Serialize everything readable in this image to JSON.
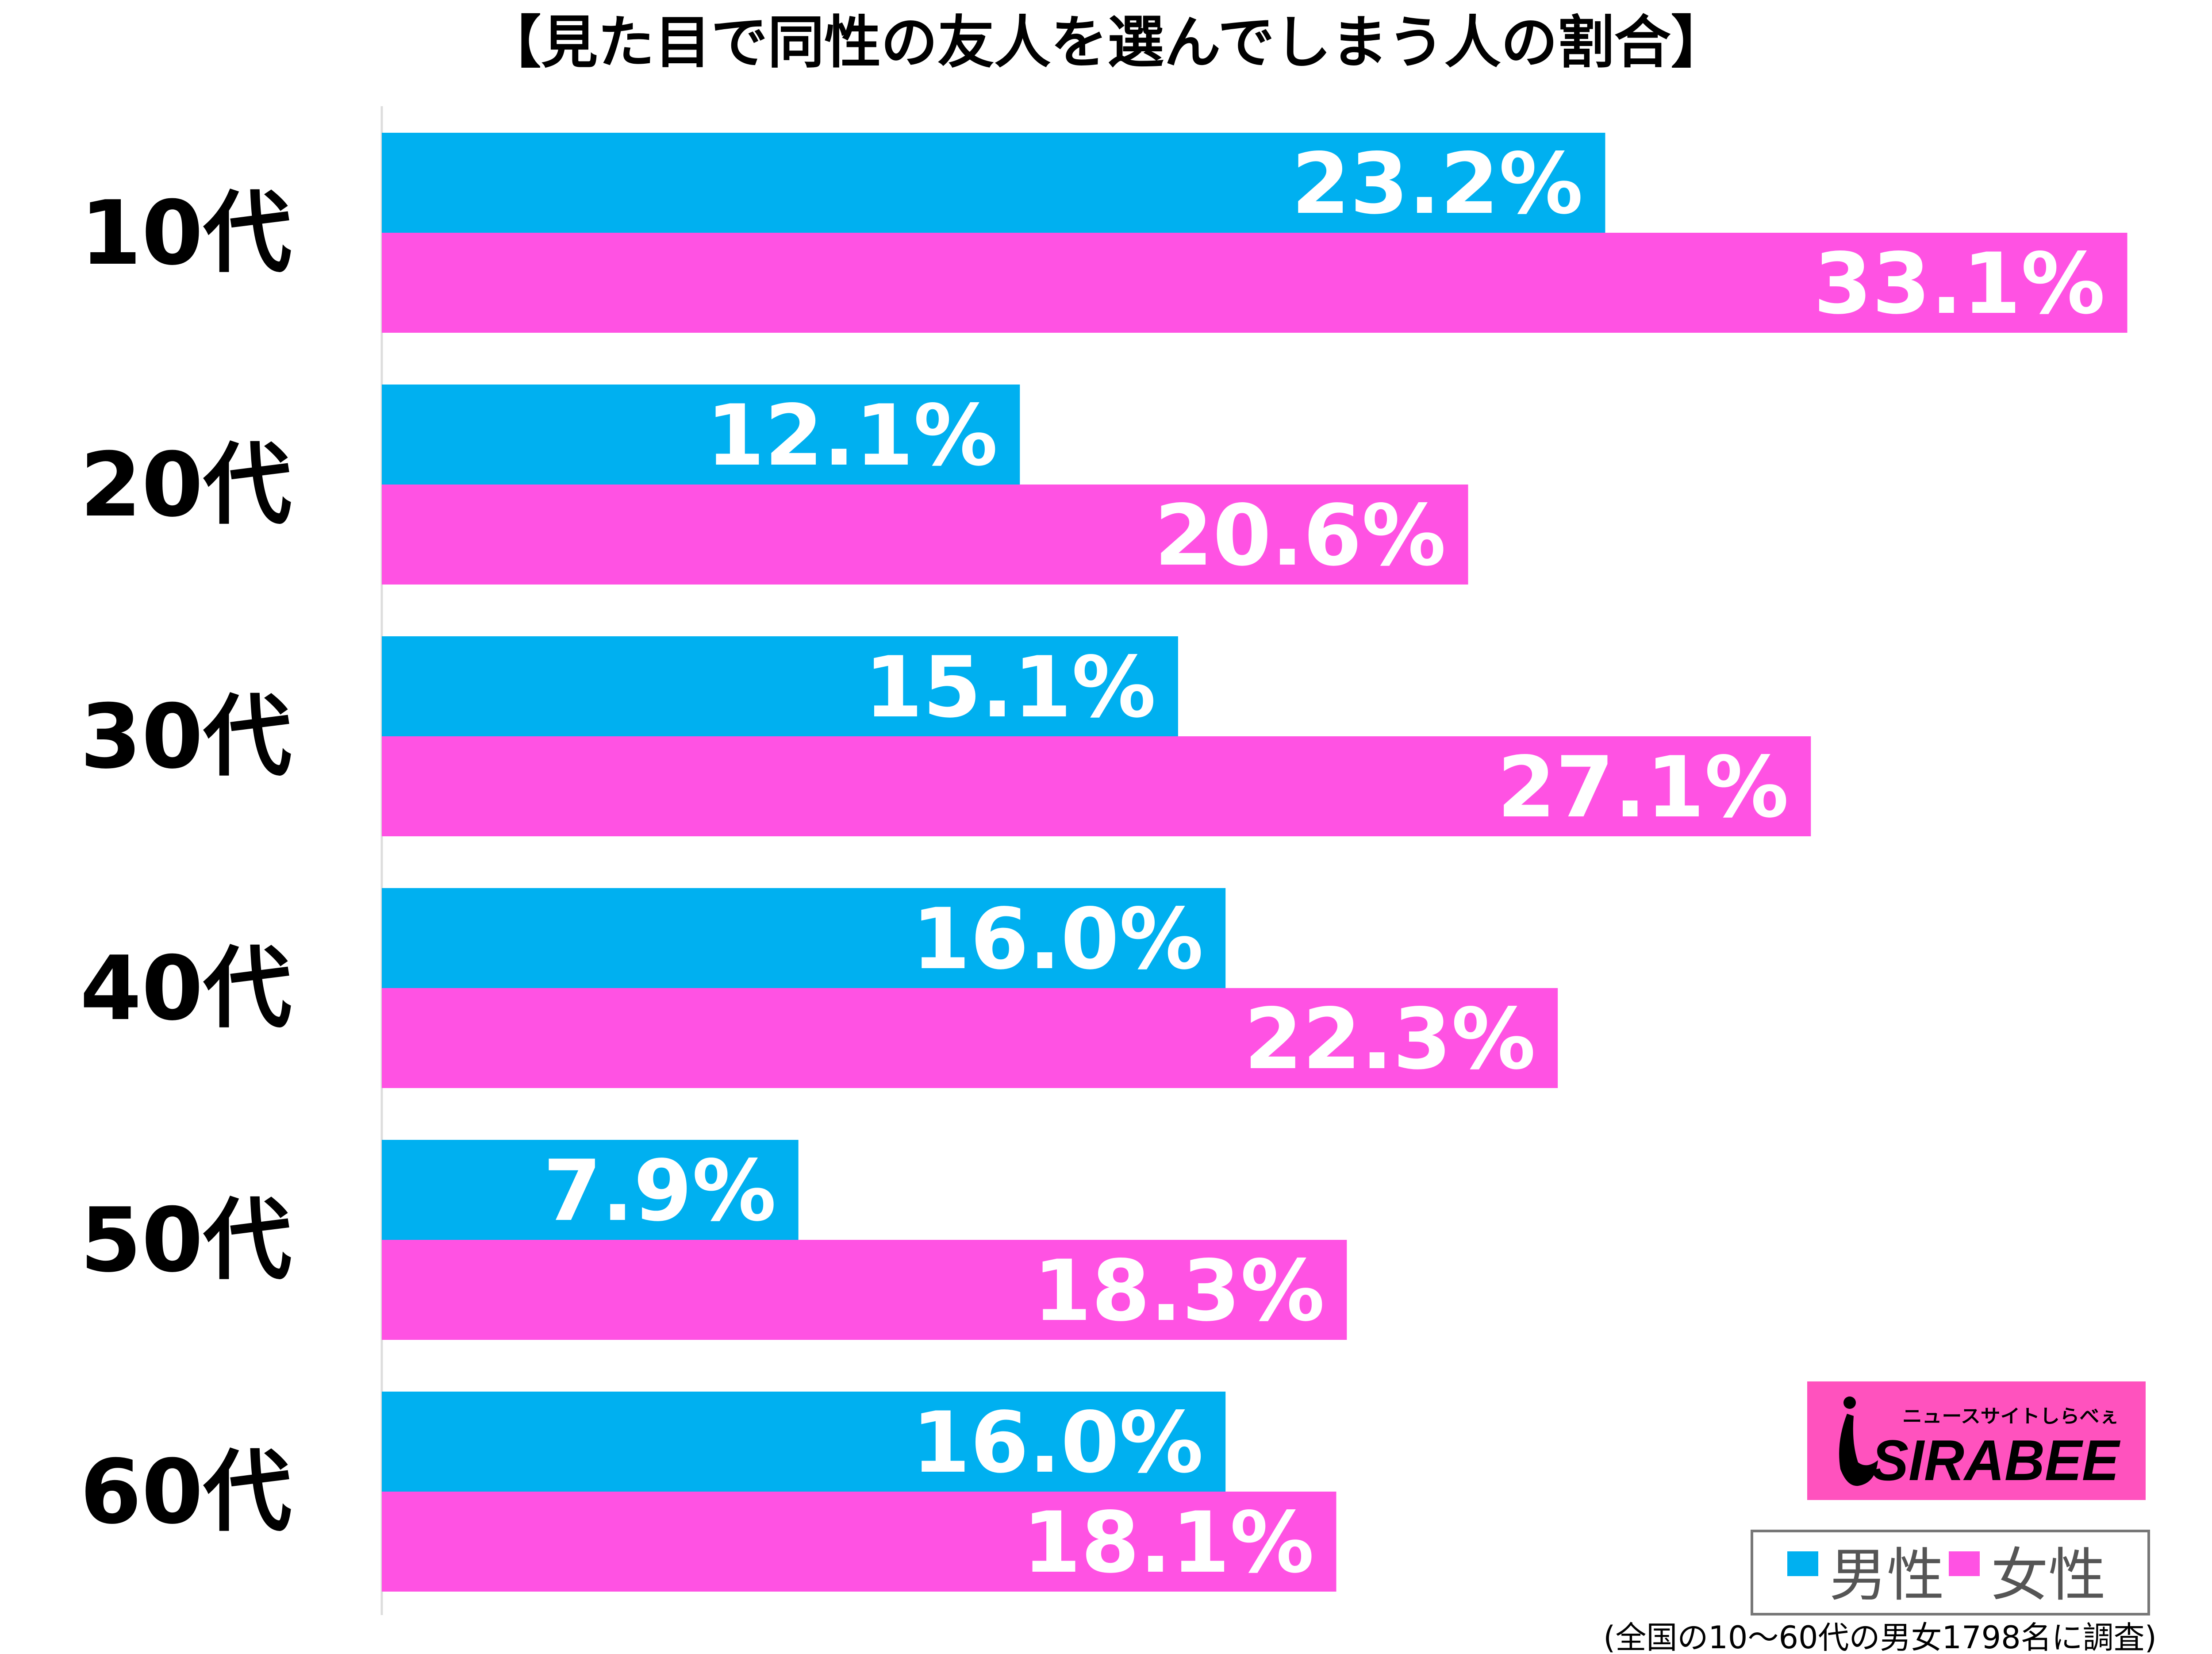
{
  "chart_data": {
    "type": "bar",
    "orientation": "horizontal",
    "title": "【見た目で同性の友人を選んでしまう人の割合】",
    "categories": [
      "10代",
      "20代",
      "30代",
      "40代",
      "50代",
      "60代"
    ],
    "series": [
      {
        "name": "男性",
        "color": "#00B0F0",
        "values": [
          23.2,
          12.1,
          15.1,
          16.0,
          7.9,
          16.0
        ],
        "labels": [
          "23.2%",
          "12.1%",
          "15.1%",
          "16.0%",
          "7.9%",
          "16.0%"
        ]
      },
      {
        "name": "女性",
        "color": "#FF52E3",
        "values": [
          33.1,
          20.6,
          27.1,
          22.3,
          18.3,
          18.1
        ],
        "labels": [
          "33.1%",
          "20.6%",
          "27.1%",
          "22.3%",
          "18.3%",
          "18.1%"
        ]
      }
    ],
    "unit": "%",
    "xlim": [
      0,
      34
    ],
    "grid": false,
    "legend": "bottom-right",
    "footnote": "(全国の10〜60代の男女1798名に調査)"
  },
  "logo": {
    "text": "SIRABEE",
    "subtext": "ニュースサイトしらべぇ",
    "color": "#FF52BE"
  }
}
